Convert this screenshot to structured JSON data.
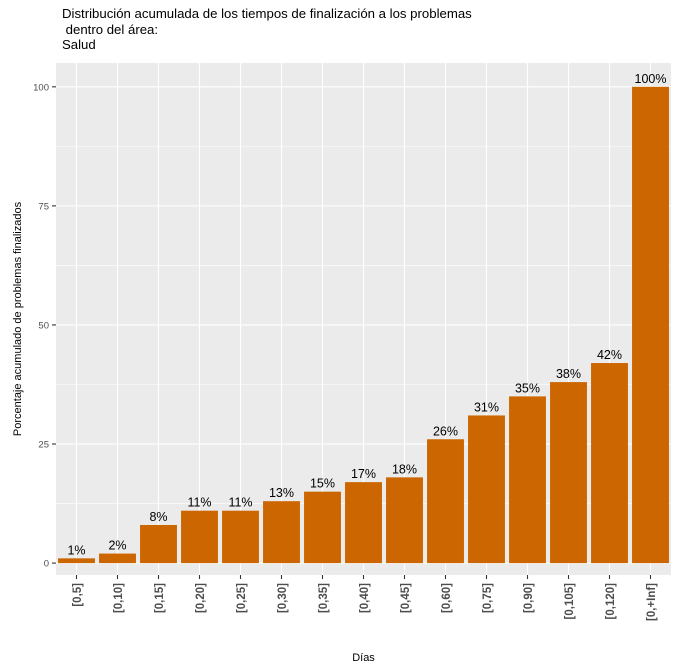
{
  "chart_data": {
    "type": "bar",
    "title": [
      "Distribución acumulada de los tiempos de finalización a los problemas",
      " dentro del área:",
      "Salud"
    ],
    "xlabel": "Días",
    "ylabel": "Porcentaje acumulado de problemas finalizados",
    "categories": [
      "[0,5]",
      "[0,10]",
      "[0,15]",
      "[0,20]",
      "[0,25]",
      "[0,30]",
      "[0,35]",
      "[0,40]",
      "[0,45]",
      "[0,60]",
      "[0,75]",
      "[0,90]",
      "[0,105]",
      "[0,120]",
      "[0,+Inf]"
    ],
    "values": [
      1,
      2,
      8,
      11,
      11,
      13,
      15,
      17,
      18,
      26,
      31,
      35,
      38,
      42,
      100
    ],
    "labels": [
      "1%",
      "2%",
      "8%",
      "11%",
      "11%",
      "13%",
      "15%",
      "17%",
      "18%",
      "26%",
      "31%",
      "35%",
      "38%",
      "42%",
      "100%"
    ],
    "ylim": [
      -2.5,
      105
    ],
    "yticks": [
      0,
      25,
      50,
      75,
      100
    ],
    "bar_color": "#CC6600",
    "panel_color": "#EBEBEB",
    "grid_color": "#FFFFFF",
    "grid": true
  }
}
